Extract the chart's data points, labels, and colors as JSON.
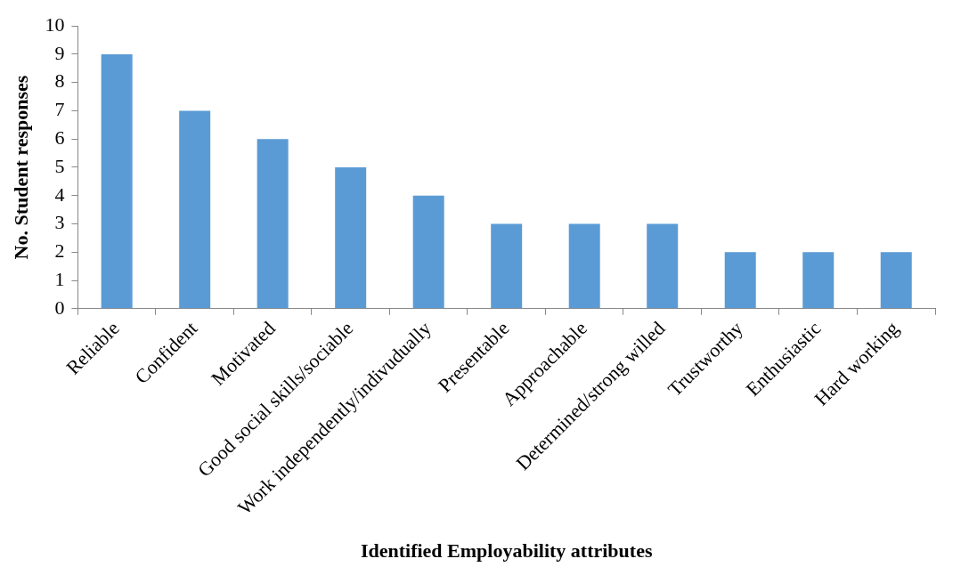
{
  "chart_data": {
    "type": "bar",
    "xlabel": "Identified Employability attributes",
    "ylabel": "No. Student responses",
    "categories": [
      "Reliable",
      "Confident",
      "Motivated",
      "Good social skills/sociable",
      "Work independently/indivudually",
      "Presentable",
      "Approachable",
      "Determined/strong willed",
      "Trustworthy",
      "Enthusiastic",
      "Hard working"
    ],
    "values": [
      9,
      7,
      6,
      5,
      4,
      3,
      3,
      3,
      2,
      2,
      2
    ],
    "color": "#5b9bd5",
    "ylim": [
      0,
      10
    ],
    "yticks": [
      0,
      1,
      2,
      3,
      4,
      5,
      6,
      7,
      8,
      9,
      10
    ],
    "grid": false,
    "legend": false
  }
}
